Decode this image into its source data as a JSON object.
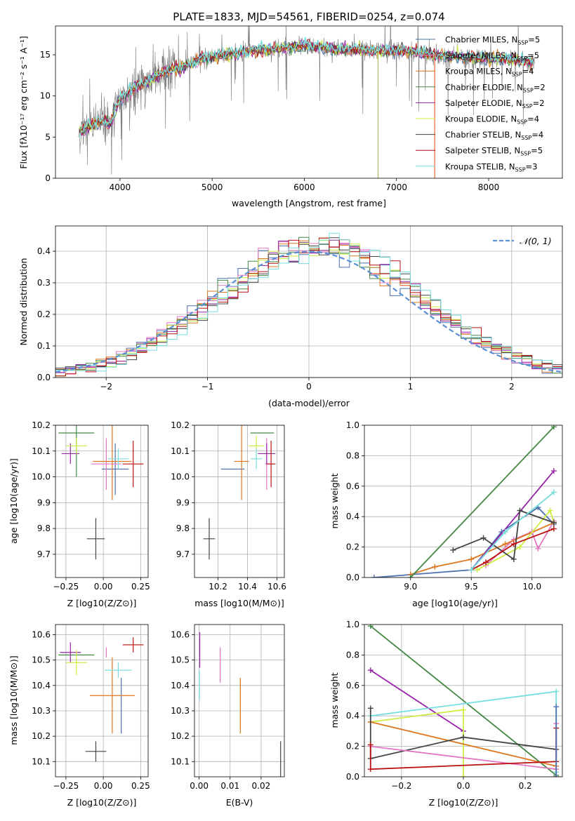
{
  "colors": {
    "chabrier_miles": "#4c72b0",
    "salpeter_miles": "#e377c2",
    "kroupa_miles": "#dd7722",
    "chabrier_elodie": "#448844",
    "salpeter_elodie": "#9922aa",
    "kroupa_elodie": "#ccee44",
    "chabrier_stelib": "#444444",
    "salpeter_stelib": "#bb1111",
    "kroupa_stelib": "#77dddd",
    "normal": "#5b8fd6",
    "data_gray": "#777777",
    "grid": "#b0b0b0"
  },
  "chart_data": [
    {
      "id": "spectrum",
      "type": "line",
      "title": "PLATE=1833, MJD=54561, FIBERID=0254, z=0.074",
      "xlabel": "wavelength [Angstrom, rest frame]",
      "ylabel": "Flux [fλ10⁻¹⁷ erg cm⁻² s⁻¹ A⁻¹]",
      "xlim": [
        3300,
        8800
      ],
      "ylim": [
        0,
        18.5
      ],
      "xticks": [
        4000,
        5000,
        6000,
        7000,
        8000
      ],
      "yticks": [
        0,
        5,
        10,
        15
      ],
      "grid": false,
      "legend_position": "right",
      "continuum": {
        "x": [
          3550,
          3620,
          3700,
          3800,
          3900,
          3950,
          4000,
          4100,
          4200,
          4300,
          4400,
          4500,
          4600,
          4700,
          4800,
          4900,
          5000,
          5200,
          5400,
          5600,
          5800,
          6000,
          6200,
          6400,
          6600,
          6800,
          7000,
          7200,
          7400,
          7600,
          7800,
          8000,
          8200,
          8400,
          8500
        ],
        "y": [
          5.5,
          6.0,
          6.5,
          7.0,
          6.5,
          8.5,
          9.5,
          10.5,
          11.2,
          11.7,
          12.4,
          13.0,
          13.3,
          13.6,
          14.1,
          14.5,
          14.7,
          15.1,
          15.4,
          15.6,
          15.9,
          16.1,
          15.9,
          15.6,
          15.6,
          15.4,
          15.6,
          15.3,
          15.0,
          14.8,
          14.6,
          14.5,
          14.4,
          14.3,
          14.0
        ]
      },
      "legend": [
        {
          "name": "Chabrier MILES, N",
          "n": "5"
        },
        {
          "name": "Salpeter MILES, N",
          "n": "5"
        },
        {
          "name": "Kroupa MILES, N",
          "n": "4"
        },
        {
          "name": "Chabrier ELODIE, N",
          "n": "2"
        },
        {
          "name": "Salpeter ELODIE, N",
          "n": "2"
        },
        {
          "name": "Kroupa ELODIE, N",
          "n": "4"
        },
        {
          "name": "Chabrier STELIB, N",
          "n": "4"
        },
        {
          "name": "Salpeter STELIB, N",
          "n": "5"
        },
        {
          "name": "Kroupa STELIB, N",
          "n": "3"
        }
      ],
      "legend_sub": "SSP"
    },
    {
      "id": "residuals",
      "type": "bar",
      "xlabel": "(data-model)/error",
      "ylabel": "Normed distribution",
      "xlim": [
        -2.5,
        2.5
      ],
      "ylim": [
        0,
        0.48
      ],
      "xticks": [
        -2,
        -1,
        0,
        1,
        2
      ],
      "yticks": [
        0.0,
        0.1,
        0.2,
        0.3,
        0.4
      ],
      "grid": true,
      "legend": [
        {
          "name": "𝒩(0, 1)"
        }
      ],
      "legend_position": "top-right",
      "bin_width": 0.1
    },
    {
      "id": "age_vs_Z",
      "type": "scatter",
      "xlabel": "Z [log10(Z/Z⊙)]",
      "ylabel": "age  [log10(age/yr)]",
      "xlim": [
        -0.32,
        0.3
      ],
      "ylim": [
        9.61,
        10.2
      ],
      "xticks": [
        -0.25,
        0.0,
        0.25
      ],
      "xticklabels": [
        "−0.25",
        "0.00",
        "0.25"
      ],
      "yticks": [
        9.7,
        9.8,
        9.9,
        10.0,
        10.1,
        10.2
      ],
      "points": [
        {
          "series": "chabrier_miles",
          "x": 0.08,
          "y": 10.03,
          "xerr": 0.09,
          "yerr": 0.1
        },
        {
          "series": "salpeter_miles",
          "x": 0.02,
          "y": 10.05,
          "xerr": 0.1,
          "yerr": 0.1
        },
        {
          "series": "kroupa_miles",
          "x": 0.06,
          "y": 10.06,
          "xerr": 0.13,
          "yerr": 0.15
        },
        {
          "series": "chabrier_elodie",
          "x": -0.18,
          "y": 10.17,
          "xerr": 0.12,
          "yerr": 0.17
        },
        {
          "series": "salpeter_elodie",
          "x": -0.22,
          "y": 10.09,
          "xerr": 0.06,
          "yerr": 0.04
        },
        {
          "series": "kroupa_elodie",
          "x": -0.18,
          "y": 10.12,
          "xerr": 0.07,
          "yerr": 0.03
        },
        {
          "series": "chabrier_stelib",
          "x": -0.05,
          "y": 9.76,
          "xerr": 0.06,
          "yerr": 0.08
        },
        {
          "series": "salpeter_stelib",
          "x": 0.2,
          "y": 10.05,
          "xerr": 0.07,
          "yerr": 0.09
        },
        {
          "series": "kroupa_stelib",
          "x": 0.1,
          "y": 10.07,
          "xerr": 0.07,
          "yerr": 0.04
        }
      ]
    },
    {
      "id": "age_vs_mass",
      "type": "scatter",
      "xlabel": "mass [log10(M/M⊙)]",
      "ylabel": "",
      "xlim": [
        10.04,
        10.65
      ],
      "ylim": [
        9.61,
        10.2
      ],
      "xticks": [
        10.2,
        10.4,
        10.6
      ],
      "xticklabels": [
        "10.2",
        "10.4",
        "10.6"
      ],
      "yticks": [
        9.7,
        9.8,
        9.9,
        10.0,
        10.1,
        10.2
      ],
      "points": [
        {
          "series": "chabrier_miles",
          "x": 10.3,
          "y": 10.03,
          "xerr": 0.08,
          "yerr": 0.0
        },
        {
          "series": "salpeter_miles",
          "x": 10.53,
          "y": 10.05,
          "xerr": 0.01,
          "yerr": 0.1
        },
        {
          "series": "kroupa_miles",
          "x": 10.36,
          "y": 10.06,
          "xerr": 0.05,
          "yerr": 0.15
        },
        {
          "series": "chabrier_elodie",
          "x": 10.5,
          "y": 10.17,
          "xerr": 0.08,
          "yerr": 0.0
        },
        {
          "series": "salpeter_elodie",
          "x": 10.53,
          "y": 10.09,
          "xerr": 0.06,
          "yerr": 0.04
        },
        {
          "series": "kroupa_elodie",
          "x": 10.46,
          "y": 10.12,
          "xerr": 0.05,
          "yerr": 0.04
        },
        {
          "series": "chabrier_stelib",
          "x": 10.14,
          "y": 9.76,
          "xerr": 0.04,
          "yerr": 0.08
        },
        {
          "series": "salpeter_stelib",
          "x": 10.56,
          "y": 10.05,
          "xerr": 0.03,
          "yerr": 0.09
        },
        {
          "series": "kroupa_stelib",
          "x": 10.46,
          "y": 10.07,
          "xerr": 0.04,
          "yerr": 0.04
        }
      ]
    },
    {
      "id": "weight_vs_age",
      "type": "line",
      "xlabel": "age  [log10(age/yr)]",
      "ylabel": "mass weight",
      "xlim": [
        8.62,
        10.25
      ],
      "ylim": [
        0.0,
        1.0
      ],
      "xticks": [
        9.0,
        9.5,
        10.0
      ],
      "xticklabels": [
        "9.0",
        "9.5",
        "10.0"
      ],
      "yticks": [
        0.0,
        0.2,
        0.4,
        0.6,
        0.8,
        1.0
      ],
      "grid": true,
      "series": [
        {
          "name": "chabrier_miles",
          "x": [
            8.7,
            9.5,
            9.75,
            10.05,
            10.18
          ],
          "y": [
            0.0,
            0.05,
            0.3,
            0.46,
            0.35
          ]
        },
        {
          "name": "salpeter_miles",
          "x": [
            9.62,
            9.85,
            10.0,
            10.05,
            10.18
          ],
          "y": [
            0.08,
            0.25,
            0.3,
            0.19,
            0.37
          ]
        },
        {
          "name": "kroupa_miles",
          "x": [
            9.0,
            9.2,
            9.5,
            9.78,
            10.18
          ],
          "y": [
            0.02,
            0.07,
            0.12,
            0.22,
            0.36
          ]
        },
        {
          "name": "chabrier_elodie",
          "x": [
            9.0,
            10.18
          ],
          "y": [
            0.0,
            0.99
          ]
        },
        {
          "name": "salpeter_elodie",
          "x": [
            9.5,
            10.18
          ],
          "y": [
            0.05,
            0.7
          ]
        },
        {
          "name": "kroupa_elodie",
          "x": [
            9.55,
            9.9,
            10.15,
            10.18
          ],
          "y": [
            0.05,
            0.2,
            0.44,
            0.36
          ]
        },
        {
          "name": "chabrier_stelib",
          "x": [
            9.35,
            9.6,
            9.85,
            9.9,
            10.18
          ],
          "y": [
            0.18,
            0.26,
            0.12,
            0.44,
            0.36
          ]
        },
        {
          "name": "salpeter_stelib",
          "x": [
            9.5,
            9.62,
            9.85,
            10.18
          ],
          "y": [
            0.05,
            0.1,
            0.22,
            0.32
          ]
        },
        {
          "name": "kroupa_stelib",
          "x": [
            9.5,
            9.78,
            10.18
          ],
          "y": [
            0.05,
            0.3,
            0.56
          ]
        }
      ]
    },
    {
      "id": "mass_vs_Z",
      "type": "scatter",
      "xlabel": "Z [log10(Z/Z⊙)]",
      "ylabel": "mass [log10(M/M⊙)]",
      "xlim": [
        -0.32,
        0.3
      ],
      "ylim": [
        10.04,
        10.64
      ],
      "xticks": [
        -0.25,
        0.0,
        0.25
      ],
      "xticklabels": [
        "−0.25",
        "0.00",
        "0.25"
      ],
      "yticks": [
        10.1,
        10.2,
        10.3,
        10.4,
        10.5,
        10.6
      ],
      "points": [
        {
          "series": "chabrier_miles",
          "x": 0.12,
          "y": 10.32,
          "xerr": 0.0,
          "yerr": 0.11
        },
        {
          "series": "salpeter_miles",
          "x": 0.02,
          "y": 10.53,
          "xerr": 0.0,
          "yerr": 0.02
        },
        {
          "series": "kroupa_miles",
          "x": 0.06,
          "y": 10.36,
          "xerr": 0.15,
          "yerr": 0.15
        },
        {
          "series": "chabrier_elodie",
          "x": -0.18,
          "y": 10.52,
          "xerr": 0.12,
          "yerr": 0.0
        },
        {
          "series": "salpeter_elodie",
          "x": -0.22,
          "y": 10.53,
          "xerr": 0.07,
          "yerr": 0.04
        },
        {
          "series": "kroupa_elodie",
          "x": -0.18,
          "y": 10.49,
          "xerr": 0.07,
          "yerr": 0.05
        },
        {
          "series": "chabrier_stelib",
          "x": -0.05,
          "y": 10.14,
          "xerr": 0.07,
          "yerr": 0.04
        },
        {
          "series": "salpeter_stelib",
          "x": 0.2,
          "y": 10.56,
          "xerr": 0.07,
          "yerr": 0.03
        },
        {
          "series": "kroupa_stelib",
          "x": 0.1,
          "y": 10.46,
          "xerr": 0.09,
          "yerr": 0.03
        }
      ]
    },
    {
      "id": "mass_vs_ebv",
      "type": "scatter",
      "xlabel": "E(B-V)",
      "ylabel": "",
      "xlim": [
        -0.0015,
        0.0275
      ],
      "ylim": [
        10.04,
        10.64
      ],
      "xticks": [
        0.0,
        0.01,
        0.02
      ],
      "xticklabels": [
        "0.00",
        "0.01",
        "0.02"
      ],
      "yticks": [
        10.1,
        10.2,
        10.3,
        10.4,
        10.5,
        10.6
      ],
      "points": [
        {
          "series": "salpeter_elodie",
          "x": 0.0002,
          "y": 10.54,
          "xerr": 0.0,
          "yerr": 0.07
        },
        {
          "series": "kroupa_stelib",
          "x": 0.0001,
          "y": 10.4,
          "xerr": 0.0,
          "yerr": 0.06
        },
        {
          "series": "salpeter_miles",
          "x": 0.0068,
          "y": 10.48,
          "xerr": 0.0,
          "yerr": 0.07
        },
        {
          "series": "kroupa_miles",
          "x": 0.0133,
          "y": 10.32,
          "xerr": 0.0,
          "yerr": 0.11
        },
        {
          "series": "chabrier_stelib",
          "x": 0.0263,
          "y": 10.1,
          "xerr": 0.0,
          "yerr": 0.08
        }
      ]
    },
    {
      "id": "weight_vs_Z",
      "type": "line",
      "xlabel": "Z [log10(Z/Z⊙)]",
      "ylabel": "mass weight",
      "xlim": [
        -0.32,
        0.32
      ],
      "ylim": [
        0.0,
        1.0
      ],
      "xticks": [
        -0.2,
        0.0,
        0.2
      ],
      "xticklabels": [
        "−0.2",
        "0.0",
        "0.2"
      ],
      "yticks": [
        0.0,
        0.2,
        0.4,
        0.6,
        0.8,
        1.0
      ],
      "grid": true,
      "series": [
        {
          "name": "chabrier_elodie",
          "x": [
            -0.3,
            0.3
          ],
          "y": [
            0.99,
            0.01
          ]
        },
        {
          "name": "salpeter_elodie",
          "x": [
            -0.3,
            0.0
          ],
          "y": [
            0.7,
            0.3
          ]
        },
        {
          "name": "kroupa_stelib",
          "x": [
            -0.3,
            0.3,
            0.3
          ],
          "y": [
            0.4,
            0.56,
            0.03
          ]
        },
        {
          "name": "kroupa_elodie",
          "x": [
            -0.3,
            0.0,
            0.0
          ],
          "y": [
            0.36,
            0.44,
            0.0
          ]
        },
        {
          "name": "kroupa_miles",
          "x": [
            -0.3,
            0.3
          ],
          "y": [
            0.36,
            0.07
          ]
        },
        {
          "name": "chabrier_stelib",
          "x": [
            -0.3,
            -0.3,
            0.0,
            0.3
          ],
          "y": [
            0.45,
            0.12,
            0.26,
            0.18
          ]
        },
        {
          "name": "salpeter_miles",
          "x": [
            -0.3,
            0.3,
            0.3
          ],
          "y": [
            0.2,
            0.05,
            0.35
          ]
        },
        {
          "name": "salpeter_stelib",
          "x": [
            -0.3,
            -0.3,
            0.3,
            0.3
          ],
          "y": [
            0.21,
            0.05,
            0.1,
            0.32
          ]
        },
        {
          "name": "chabrier_miles",
          "x": [
            0.3,
            0.3
          ],
          "y": [
            0.46,
            0.0
          ]
        }
      ]
    }
  ]
}
